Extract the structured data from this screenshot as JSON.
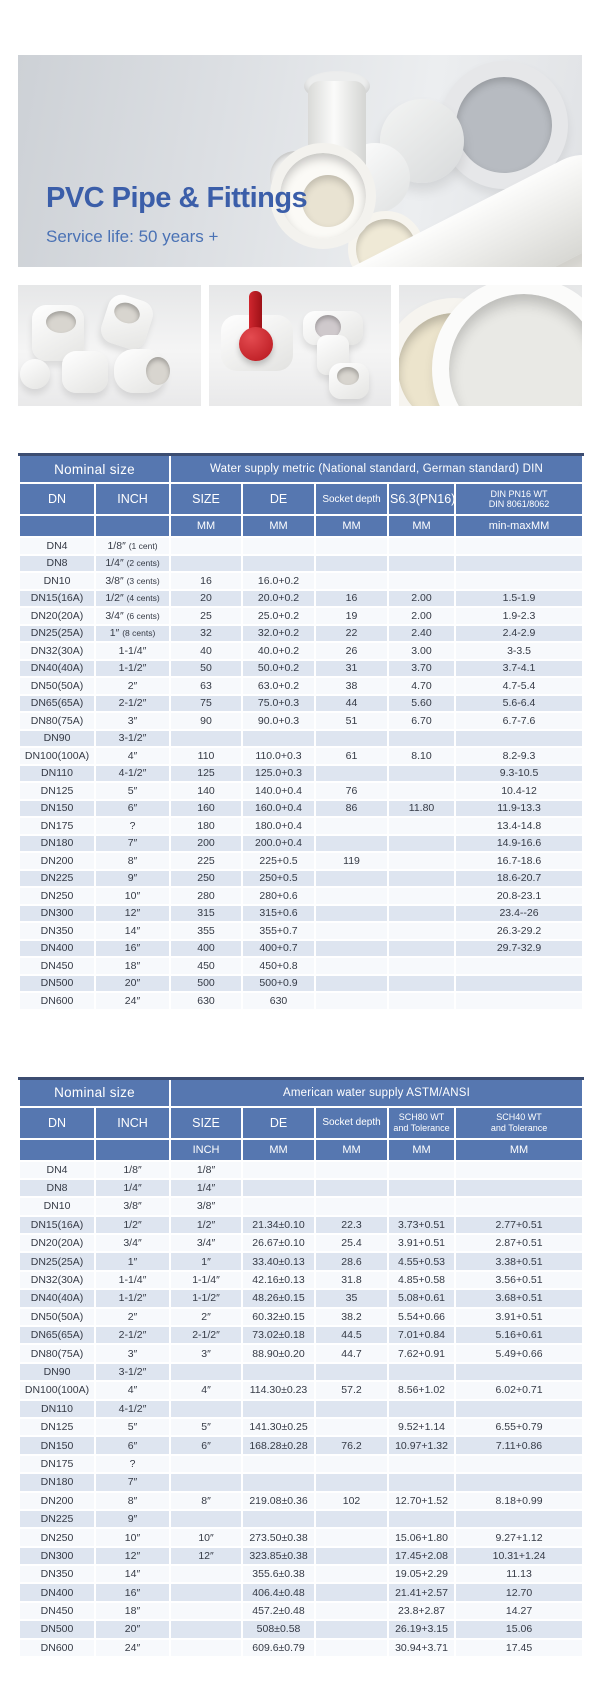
{
  "hero": {
    "title": "PVC Pipe & Fittings",
    "subtitle": "Service life: 50 years +",
    "title_color": "#3b5ea9",
    "subtitle_color": "#4a72b5"
  },
  "thumbnails": [
    {
      "name": "white elbow fittings"
    },
    {
      "name": "ball valve and tee fittings"
    },
    {
      "name": "large pipe ends"
    }
  ],
  "colors": {
    "header_blue": "#5677b0",
    "row_even": "#dee5f0",
    "row_odd": "#f7f9fc",
    "table_top_border": "#3c4d71"
  },
  "table_metric": {
    "group_left": "Nominal size",
    "group_right": "Water supply metric (National standard, German standard) DIN",
    "columns": [
      "DN",
      "INCH",
      "SIZE",
      "DE",
      "Socket depth",
      "S6.3(PN16)",
      "DIN PN16 WT\nDIN 8061/8062"
    ],
    "units": [
      "",
      "",
      "MM",
      "MM",
      "MM",
      "MM",
      "min-maxMM"
    ],
    "rows": [
      [
        "DN4",
        "1/8″ (1 cent)",
        "",
        "",
        "",
        "",
        ""
      ],
      [
        "DN8",
        "1/4″ (2 cents)",
        "",
        "",
        "",
        "",
        ""
      ],
      [
        "DN10",
        "3/8″ (3 cents)",
        "16",
        "16.0+0.2",
        "",
        "",
        ""
      ],
      [
        "DN15(16A)",
        "1/2″ (4 cents)",
        "20",
        "20.0+0.2",
        "16",
        "2.00",
        "1.5-1.9"
      ],
      [
        "DN20(20A)",
        "3/4″ (6 cents)",
        "25",
        "25.0+0.2",
        "19",
        "2.00",
        "1.9-2.3"
      ],
      [
        "DN25(25A)",
        "1″ (8 cents)",
        "32",
        "32.0+0.2",
        "22",
        "2.40",
        "2.4-2.9"
      ],
      [
        "DN32(30A)",
        "1-1/4″",
        "40",
        "40.0+0.2",
        "26",
        "3.00",
        "3-3.5"
      ],
      [
        "DN40(40A)",
        "1-1/2″",
        "50",
        "50.0+0.2",
        "31",
        "3.70",
        "3.7-4.1"
      ],
      [
        "DN50(50A)",
        "2″",
        "63",
        "63.0+0.2",
        "38",
        "4.70",
        "4.7-5.4"
      ],
      [
        "DN65(65A)",
        "2-1/2″",
        "75",
        "75.0+0.3",
        "44",
        "5.60",
        "5.6-6.4"
      ],
      [
        "DN80(75A)",
        "3″",
        "90",
        "90.0+0.3",
        "51",
        "6.70",
        "6.7-7.6"
      ],
      [
        "DN90",
        "3-1/2″",
        "",
        "",
        "",
        "",
        ""
      ],
      [
        "DN100(100A)",
        "4″",
        "110",
        "110.0+0.3",
        "61",
        "8.10",
        "8.2-9.3"
      ],
      [
        "DN110",
        "4-1/2″",
        "125",
        "125.0+0.3",
        "",
        "",
        "9.3-10.5"
      ],
      [
        "DN125",
        "5″",
        "140",
        "140.0+0.4",
        "76",
        "",
        "10.4-12"
      ],
      [
        "DN150",
        "6″",
        "160",
        "160.0+0.4",
        "86",
        "11.80",
        "11.9-13.3"
      ],
      [
        "DN175",
        "?",
        "180",
        "180.0+0.4",
        "",
        "",
        "13.4-14.8"
      ],
      [
        "DN180",
        "7″",
        "200",
        "200.0+0.4",
        "",
        "",
        "14.9-16.6"
      ],
      [
        "DN200",
        "8″",
        "225",
        "225+0.5",
        "119",
        "",
        "16.7-18.6"
      ],
      [
        "DN225",
        "9″",
        "250",
        "250+0.5",
        "",
        "",
        "18.6-20.7"
      ],
      [
        "DN250",
        "10″",
        "280",
        "280+0.6",
        "",
        "",
        "20.8-23.1"
      ],
      [
        "DN300",
        "12″",
        "315",
        "315+0.6",
        "",
        "",
        "23.4--26"
      ],
      [
        "DN350",
        "14″",
        "355",
        "355+0.7",
        "",
        "",
        "26.3-29.2"
      ],
      [
        "DN400",
        "16″",
        "400",
        "400+0.7",
        "",
        "",
        "29.7-32.9"
      ],
      [
        "DN450",
        "18″",
        "450",
        "450+0.8",
        "",
        "",
        ""
      ],
      [
        "DN500",
        "20″",
        "500",
        "500+0.9",
        "",
        "",
        ""
      ],
      [
        "DN600",
        "24″",
        "630",
        "630",
        "",
        "",
        ""
      ]
    ]
  },
  "table_astm": {
    "group_left": "Nominal size",
    "group_right": "American water supply  ASTM/ANSI",
    "columns": [
      "DN",
      "INCH",
      "SIZE",
      "DE",
      "Socket depth",
      "SCH80 WT\nand Tolerance",
      "SCH40 WT\nand Tolerance"
    ],
    "units": [
      "",
      "",
      "INCH",
      "MM",
      "MM",
      "MM",
      "MM"
    ],
    "rows": [
      [
        "DN4",
        "1/8″",
        "1/8″",
        "",
        "",
        "",
        ""
      ],
      [
        "DN8",
        "1/4″",
        "1/4″",
        "",
        "",
        "",
        ""
      ],
      [
        "DN10",
        "3/8″",
        "3/8″",
        "",
        "",
        "",
        ""
      ],
      [
        "DN15(16A)",
        "1/2″",
        "1/2″",
        "21.34±0.10",
        "22.3",
        "3.73+0.51",
        "2.77+0.51"
      ],
      [
        "DN20(20A)",
        "3/4″",
        "3/4″",
        "26.67±0.10",
        "25.4",
        "3.91+0.51",
        "2.87+0.51"
      ],
      [
        "DN25(25A)",
        "1″",
        "1″",
        "33.40±0.13",
        "28.6",
        "4.55+0.53",
        "3.38+0.51"
      ],
      [
        "DN32(30A)",
        "1-1/4″",
        "1-1/4″",
        "42.16±0.13",
        "31.8",
        "4.85+0.58",
        "3.56+0.51"
      ],
      [
        "DN40(40A)",
        "1-1/2″",
        "1-1/2″",
        "48.26±0.15",
        "35",
        "5.08+0.61",
        "3.68+0.51"
      ],
      [
        "DN50(50A)",
        "2″",
        "2″",
        "60.32±0.15",
        "38.2",
        "5.54+0.66",
        "3.91+0.51"
      ],
      [
        "DN65(65A)",
        "2-1/2″",
        "2-1/2″",
        "73.02±0.18",
        "44.5",
        "7.01+0.84",
        "5.16+0.61"
      ],
      [
        "DN80(75A)",
        "3″",
        "3″",
        "88.90±0.20",
        "44.7",
        "7.62+0.91",
        "5.49+0.66"
      ],
      [
        "DN90",
        "3-1/2″",
        "",
        "",
        "",
        "",
        ""
      ],
      [
        "DN100(100A)",
        "4″",
        "4″",
        "114.30±0.23",
        "57.2",
        "8.56+1.02",
        "6.02+0.71"
      ],
      [
        "DN110",
        "4-1/2″",
        "",
        "",
        "",
        "",
        ""
      ],
      [
        "DN125",
        "5″",
        "5″",
        "141.30±0.25",
        "",
        "9.52+1.14",
        "6.55+0.79"
      ],
      [
        "DN150",
        "6″",
        "6″",
        "168.28±0.28",
        "76.2",
        "10.97+1.32",
        "7.11+0.86"
      ],
      [
        "DN175",
        "?",
        "",
        "",
        "",
        "",
        ""
      ],
      [
        "DN180",
        "7″",
        "",
        "",
        "",
        "",
        ""
      ],
      [
        "DN200",
        "8″",
        "8″",
        "219.08±0.36",
        "102",
        "12.70+1.52",
        "8.18+0.99"
      ],
      [
        "DN225",
        "9″",
        "",
        "",
        "",
        "",
        ""
      ],
      [
        "DN250",
        "10″",
        "10″",
        "273.50±0.38",
        "",
        "15.06+1.80",
        "9.27+1.12"
      ],
      [
        "DN300",
        "12″",
        "12″",
        "323.85±0.38",
        "",
        "17.45+2.08",
        "10.31+1.24"
      ],
      [
        "DN350",
        "14″",
        "",
        "355.6±0.38",
        "",
        "19.05+2.29",
        "11.13"
      ],
      [
        "DN400",
        "16″",
        "",
        "406.4±0.48",
        "",
        "21.41+2.57",
        "12.70"
      ],
      [
        "DN450",
        "18″",
        "",
        "457.2±0.48",
        "",
        "23.8+2.87",
        "14.27"
      ],
      [
        "DN500",
        "20″",
        "",
        "508±0.58",
        "",
        "26.19+3.15",
        "15.06"
      ],
      [
        "DN600",
        "24″",
        "",
        "609.6±0.79",
        "",
        "30.94+3.71",
        "17.45"
      ]
    ]
  }
}
